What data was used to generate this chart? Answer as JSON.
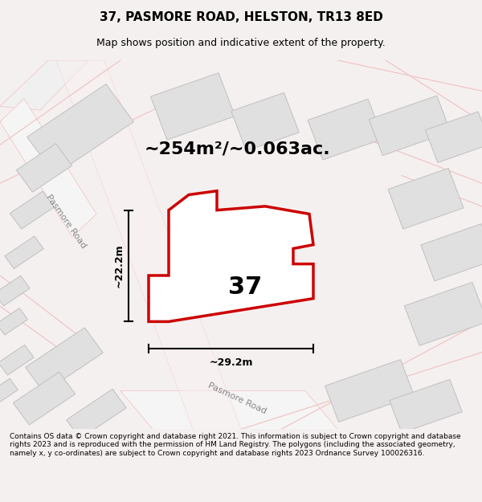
{
  "title": "37, PASMORE ROAD, HELSTON, TR13 8ED",
  "subtitle": "Map shows position and indicative extent of the property.",
  "footer": "Contains OS data © Crown copyright and database right 2021. This information is subject to Crown copyright and database rights 2023 and is reproduced with the permission of HM Land Registry. The polygons (including the associated geometry, namely x, y co-ordinates) are subject to Crown copyright and database rights 2023 Ordnance Survey 100026316.",
  "area_label": "~254m²/~0.063ac.",
  "width_label": "~29.2m",
  "height_label": "~22.2m",
  "number_label": "37",
  "background_color": "#f5f0f0",
  "map_bg_color": "#ffffff",
  "plot_outline_color": "#cc0000",
  "plot_fill_color": "#ffffff",
  "road_label_1": "Pasmore Road",
  "road_label_2": "Pasmore Road",
  "light_pink": "#f0c0c0",
  "building_fill": "#e0e0e0",
  "building_stroke": "#c0c0c0"
}
